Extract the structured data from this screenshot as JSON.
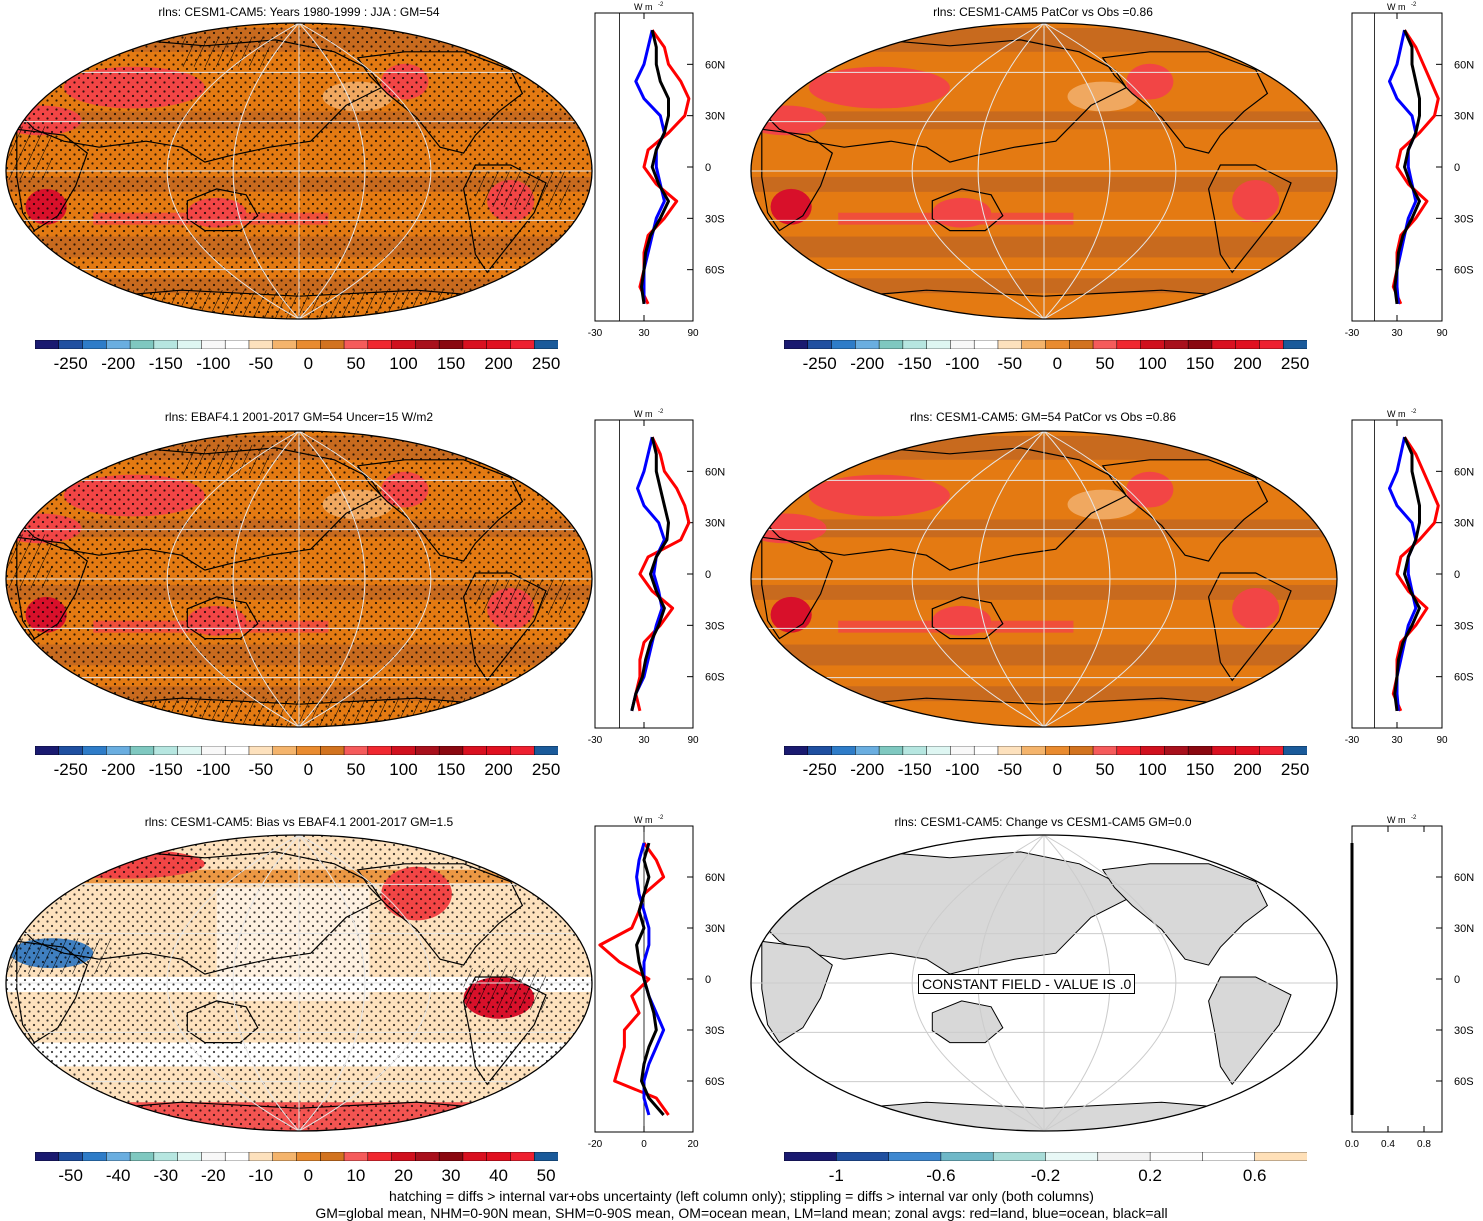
{
  "colors": {
    "ocean_base": "#e47a12",
    "band_dark": "#c86a1e",
    "band_light": "#f0a860",
    "red_mid": "#f24545",
    "red_dark": "#d8102a",
    "land_grey": "#d8d8d8",
    "graticule": "#e6e6e6",
    "line_land": "#ff0000",
    "line_ocean": "#0000ff",
    "line_all": "#000000"
  },
  "colorbar_palettes": {
    "main": [
      "#1a1a70",
      "#1f4fa0",
      "#2e7cc8",
      "#6aaee0",
      "#7fc8c0",
      "#b6e6e0",
      "#def6f2",
      "#f8f8f8",
      "#ffffff",
      "#fde1bd",
      "#f4b46c",
      "#e98b2f",
      "#d2731f",
      "#f55b5b",
      "#f02830",
      "#d0101e",
      "#a8101c",
      "#8a0810",
      "#d91020",
      "#e01020",
      "#ee2030",
      "#1a5a9a"
    ],
    "constant": [
      "#1a1a70",
      "#2050a0",
      "#3f88d0",
      "#6fb8c8",
      "#a8dcd8",
      "#e8f8f6",
      "#f2f2f2",
      "#fcfcfc",
      "#ffffff",
      "#ffe0b8"
    ]
  },
  "chart_data": [
    {
      "type": "heatmap",
      "title": "rlns: CESM1-CAM5: Years 1980-1999 : JJA : GM=54",
      "colorbar": {
        "palette": "main",
        "ticks": [
          "-250",
          "-200",
          "-150",
          "-100",
          "-50",
          "0",
          "50",
          "100",
          "150",
          "200",
          "250"
        ]
      },
      "zonal": {
        "xlim": [
          -30,
          90
        ],
        "xticks": [
          "-30",
          "30",
          "90"
        ],
        "units": "W m",
        "lat_ticks": [
          "60N",
          "30N",
          "0",
          "30S",
          "60S"
        ],
        "series": [
          {
            "name": "land",
            "color": "line_land",
            "lat": [
              80,
              70,
              60,
              50,
              40,
              30,
              20,
              10,
              0,
              -10,
              -20,
              -30,
              -40,
              -50,
              -60,
              -70,
              -80
            ],
            "values": [
              40,
              55,
              60,
              75,
              85,
              80,
              60,
              35,
              30,
              45,
              70,
              55,
              35,
              30,
              30,
              25,
              35
            ]
          },
          {
            "name": "ocean",
            "color": "line_ocean",
            "lat": [
              80,
              70,
              60,
              50,
              40,
              30,
              20,
              10,
              0,
              -10,
              -20,
              -30,
              -40,
              -50,
              -60,
              -70,
              -80
            ],
            "values": [
              40,
              35,
              30,
              20,
              30,
              50,
              55,
              45,
              45,
              50,
              55,
              45,
              40,
              35,
              30,
              30,
              30
            ]
          },
          {
            "name": "all",
            "color": "line_all",
            "lat": [
              80,
              70,
              60,
              50,
              40,
              30,
              20,
              10,
              0,
              -10,
              -20,
              -30,
              -40,
              -50,
              -60,
              -70,
              -80
            ],
            "values": [
              40,
              45,
              45,
              50,
              60,
              60,
              55,
              45,
              40,
              48,
              60,
              50,
              38,
              32,
              30,
              27,
              30
            ]
          }
        ]
      }
    },
    {
      "type": "heatmap",
      "title": "rlns: CESM1-CAM5 PatCor vs Obs =0.86",
      "colorbar": {
        "palette": "main",
        "ticks": [
          "-250",
          "-200",
          "-150",
          "-100",
          "-50",
          "0",
          "50",
          "100",
          "150",
          "200",
          "250"
        ]
      },
      "zonal": {
        "xlim": [
          -30,
          90
        ],
        "xticks": [
          "-30",
          "30",
          "90"
        ],
        "units": "W m",
        "lat_ticks": [
          "60N",
          "30N",
          "0",
          "30S",
          "60S"
        ],
        "series": [
          {
            "name": "land",
            "color": "line_land",
            "lat": [
              80,
              70,
              60,
              50,
              40,
              30,
              20,
              10,
              0,
              -10,
              -20,
              -30,
              -40,
              -50,
              -60,
              -70,
              -80
            ],
            "values": [
              40,
              55,
              65,
              75,
              85,
              80,
              60,
              35,
              30,
              45,
              70,
              55,
              35,
              30,
              30,
              25,
              35
            ]
          },
          {
            "name": "ocean",
            "color": "line_ocean",
            "lat": [
              80,
              70,
              60,
              50,
              40,
              30,
              20,
              10,
              0,
              -10,
              -20,
              -30,
              -40,
              -50,
              -60,
              -70,
              -80
            ],
            "values": [
              40,
              35,
              30,
              20,
              30,
              50,
              55,
              45,
              45,
              50,
              55,
              45,
              40,
              35,
              30,
              30,
              32
            ]
          },
          {
            "name": "all",
            "color": "line_all",
            "lat": [
              80,
              70,
              60,
              50,
              40,
              30,
              20,
              10,
              0,
              -10,
              -20,
              -30,
              -40,
              -50,
              -60,
              -70,
              -80
            ],
            "values": [
              40,
              50,
              50,
              55,
              60,
              60,
              55,
              45,
              40,
              48,
              60,
              50,
              38,
              32,
              30,
              27,
              30
            ]
          }
        ]
      }
    },
    {
      "type": "heatmap",
      "title": "rlns: EBAF4.1 2001-2017 GM=54 Uncer=15 W/m2",
      "colorbar": {
        "palette": "main",
        "ticks": [
          "-250",
          "-200",
          "-150",
          "-100",
          "-50",
          "0",
          "50",
          "100",
          "150",
          "200",
          "250"
        ]
      },
      "zonal": {
        "xlim": [
          -30,
          90
        ],
        "xticks": [
          "-30",
          "30",
          "90"
        ],
        "units": "W m",
        "lat_ticks": [
          "60N",
          "30N",
          "0",
          "30S",
          "60S"
        ],
        "series": [
          {
            "name": "land",
            "color": "line_land",
            "lat": [
              80,
              70,
              60,
              50,
              40,
              30,
              20,
              10,
              0,
              -10,
              -20,
              -30,
              -40,
              -50,
              -60,
              -70,
              -80
            ],
            "values": [
              40,
              50,
              55,
              70,
              80,
              85,
              75,
              35,
              25,
              40,
              65,
              50,
              30,
              25,
              25,
              20,
              25
            ]
          },
          {
            "name": "ocean",
            "color": "line_ocean",
            "lat": [
              80,
              70,
              60,
              50,
              40,
              30,
              20,
              10,
              0,
              -10,
              -20,
              -30,
              -40,
              -50,
              -60,
              -70,
              -80
            ],
            "values": [
              40,
              35,
              30,
              22,
              30,
              48,
              55,
              45,
              42,
              48,
              52,
              45,
              40,
              35,
              30,
              20,
              15
            ]
          },
          {
            "name": "all",
            "color": "line_all",
            "lat": [
              80,
              70,
              60,
              50,
              40,
              30,
              20,
              10,
              0,
              -10,
              -20,
              -30,
              -40,
              -50,
              -60,
              -70,
              -80
            ],
            "values": [
              40,
              45,
              45,
              50,
              55,
              60,
              58,
              45,
              38,
              45,
              55,
              48,
              38,
              32,
              28,
              20,
              15
            ]
          }
        ]
      }
    },
    {
      "type": "heatmap",
      "title": "rlns: CESM1-CAM5: GM=54 PatCor vs Obs =0.86",
      "colorbar": {
        "palette": "main",
        "ticks": [
          "-250",
          "-200",
          "-150",
          "-100",
          "-50",
          "0",
          "50",
          "100",
          "150",
          "200",
          "250"
        ]
      },
      "zonal": {
        "xlim": [
          -30,
          90
        ],
        "xticks": [
          "-30",
          "30",
          "90"
        ],
        "units": "W m",
        "lat_ticks": [
          "60N",
          "30N",
          "0",
          "30S",
          "60S"
        ],
        "series": [
          {
            "name": "land",
            "color": "line_land",
            "lat": [
              80,
              70,
              60,
              50,
              40,
              30,
              20,
              10,
              0,
              -10,
              -20,
              -30,
              -40,
              -50,
              -60,
              -70,
              -80
            ],
            "values": [
              40,
              55,
              65,
              75,
              85,
              80,
              60,
              35,
              30,
              45,
              70,
              55,
              35,
              30,
              30,
              25,
              35
            ]
          },
          {
            "name": "ocean",
            "color": "line_ocean",
            "lat": [
              80,
              70,
              60,
              50,
              40,
              30,
              20,
              10,
              0,
              -10,
              -20,
              -30,
              -40,
              -50,
              -60,
              -70,
              -80
            ],
            "values": [
              40,
              35,
              30,
              20,
              30,
              50,
              55,
              45,
              45,
              50,
              55,
              45,
              40,
              35,
              30,
              30,
              32
            ]
          },
          {
            "name": "all",
            "color": "line_all",
            "lat": [
              80,
              70,
              60,
              50,
              40,
              30,
              20,
              10,
              0,
              -10,
              -20,
              -30,
              -40,
              -50,
              -60,
              -70,
              -80
            ],
            "values": [
              40,
              50,
              50,
              55,
              60,
              60,
              55,
              45,
              40,
              48,
              60,
              50,
              38,
              32,
              30,
              27,
              30
            ]
          }
        ]
      }
    },
    {
      "type": "heatmap",
      "title": "rlns: CESM1-CAM5: Bias vs EBAF4.1 2001-2017 GM=1.5",
      "colorbar": {
        "palette": "main",
        "ticks": [
          "-50",
          "-40",
          "-30",
          "-20",
          "-10",
          "0",
          "10",
          "20",
          "30",
          "40",
          "50"
        ]
      },
      "zonal": {
        "xlim": [
          -20,
          20
        ],
        "xticks": [
          "-20",
          "0",
          "20"
        ],
        "units": "W m",
        "lat_ticks": [
          "60N",
          "30N",
          "0",
          "30S",
          "60S"
        ],
        "series": [
          {
            "name": "land",
            "color": "line_land",
            "lat": [
              80,
              70,
              60,
              50,
              40,
              30,
              20,
              10,
              0,
              -10,
              -20,
              -30,
              -40,
              -50,
              -60,
              -70,
              -80
            ],
            "values": [
              0,
              5,
              8,
              0,
              -2,
              -5,
              -18,
              -10,
              2,
              -5,
              -2,
              -8,
              -8,
              -10,
              -12,
              5,
              10
            ]
          },
          {
            "name": "ocean",
            "color": "line_ocean",
            "lat": [
              80,
              70,
              60,
              50,
              40,
              30,
              20,
              10,
              0,
              -10,
              -20,
              -30,
              -40,
              -50,
              -60,
              -70,
              -80
            ],
            "values": [
              0,
              -2,
              -3,
              -2,
              0,
              2,
              2,
              0,
              0,
              2,
              5,
              8,
              5,
              2,
              0,
              0,
              2
            ]
          },
          {
            "name": "all",
            "color": "line_all",
            "lat": [
              80,
              70,
              60,
              50,
              40,
              30,
              20,
              10,
              0,
              -10,
              -20,
              -30,
              -40,
              -50,
              -60,
              -70,
              -80
            ],
            "values": [
              2,
              0,
              2,
              0,
              -2,
              0,
              -3,
              -2,
              0,
              2,
              4,
              5,
              2,
              0,
              -1,
              2,
              8
            ]
          }
        ]
      }
    },
    {
      "type": "heatmap",
      "title": "rlns: CESM1-CAM5: Change vs CESM1-CAM5 GM=0.0",
      "annotation": "CONSTANT FIELD - VALUE IS .0",
      "colorbar": {
        "palette": "constant",
        "ticks": [
          "-1",
          "-0.6",
          "-0.2",
          "0.2",
          "0.6"
        ]
      },
      "zonal": {
        "xlim": [
          0,
          1
        ],
        "xticks": [
          "0.0",
          "0.4",
          "0.8"
        ],
        "units": "W m",
        "lat_ticks": [
          "60N",
          "30N",
          "0",
          "30S",
          "60S"
        ],
        "series": [
          {
            "name": "all",
            "color": "line_all",
            "lat": [
              80,
              -80
            ],
            "values": [
              0,
              0
            ]
          }
        ]
      }
    }
  ],
  "footer": {
    "line1": "hatching = diffs > internal var+obs uncertainty (left column only); stippling = diffs > internal var only (both columns)",
    "line2": "GM=global mean, NHM=0-90N mean, SHM=0-90S mean, OM=ocean mean, LM=land mean; zonal avgs: red=land, blue=ocean, black=all"
  }
}
